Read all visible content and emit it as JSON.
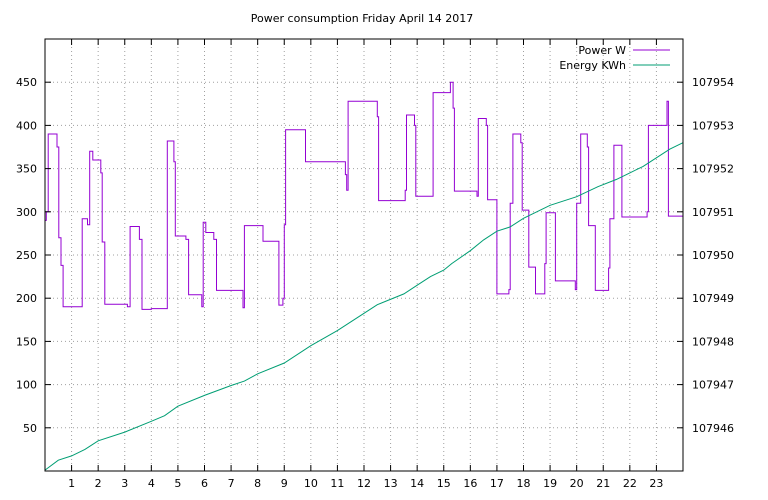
{
  "chart_data": {
    "type": "line",
    "title": "Power consumption Friday April 14 2017",
    "xlabel": "",
    "ylabel": "",
    "y2label": "",
    "x_ticks": [
      1,
      2,
      3,
      4,
      5,
      6,
      7,
      8,
      9,
      10,
      11,
      12,
      13,
      14,
      15,
      16,
      17,
      18,
      19,
      20,
      21,
      22,
      23
    ],
    "xlim": [
      0,
      24
    ],
    "ylim": [
      0,
      500
    ],
    "y_ticks": [
      50,
      100,
      150,
      200,
      250,
      300,
      350,
      400,
      450
    ],
    "y2lim": [
      107945,
      107955
    ],
    "y2_ticks": [
      107946,
      107947,
      107948,
      107949,
      107950,
      107951,
      107952,
      107953,
      107954
    ],
    "grid": true,
    "legend_position": "top-right",
    "series": [
      {
        "name": "Power W",
        "axis": "y1",
        "color": "#9400d3",
        "step": true,
        "points": [
          [
            0.0,
            290
          ],
          [
            0.05,
            300
          ],
          [
            0.12,
            390
          ],
          [
            0.45,
            375
          ],
          [
            0.52,
            270
          ],
          [
            0.6,
            238
          ],
          [
            0.68,
            190
          ],
          [
            1.4,
            292
          ],
          [
            1.6,
            285
          ],
          [
            1.68,
            370
          ],
          [
            1.8,
            360
          ],
          [
            2.1,
            345
          ],
          [
            2.15,
            265
          ],
          [
            2.25,
            193
          ],
          [
            3.1,
            190
          ],
          [
            3.2,
            283
          ],
          [
            3.55,
            268
          ],
          [
            3.65,
            187
          ],
          [
            4.0,
            188
          ],
          [
            4.6,
            382
          ],
          [
            4.85,
            358
          ],
          [
            4.9,
            272
          ],
          [
            5.3,
            268
          ],
          [
            5.4,
            204
          ],
          [
            5.9,
            190
          ],
          [
            5.95,
            288
          ],
          [
            6.05,
            276
          ],
          [
            6.35,
            268
          ],
          [
            6.45,
            209
          ],
          [
            7.45,
            189
          ],
          [
            7.5,
            284
          ],
          [
            8.2,
            266
          ],
          [
            8.8,
            192
          ],
          [
            8.95,
            200
          ],
          [
            9.0,
            285
          ],
          [
            9.05,
            395
          ],
          [
            9.8,
            358
          ],
          [
            11.3,
            343
          ],
          [
            11.35,
            325
          ],
          [
            11.4,
            428
          ],
          [
            12.5,
            410
          ],
          [
            12.55,
            313
          ],
          [
            13.55,
            325
          ],
          [
            13.6,
            412
          ],
          [
            13.9,
            400
          ],
          [
            13.95,
            318
          ],
          [
            14.6,
            438
          ],
          [
            15.25,
            450
          ],
          [
            15.35,
            420
          ],
          [
            15.4,
            324
          ],
          [
            16.25,
            318
          ],
          [
            16.3,
            408
          ],
          [
            16.6,
            400
          ],
          [
            16.65,
            314
          ],
          [
            17.0,
            205
          ],
          [
            17.45,
            210
          ],
          [
            17.5,
            310
          ],
          [
            17.6,
            390
          ],
          [
            17.9,
            380
          ],
          [
            17.95,
            302
          ],
          [
            18.2,
            236
          ],
          [
            18.45,
            205
          ],
          [
            18.8,
            240
          ],
          [
            18.85,
            299
          ],
          [
            19.2,
            220
          ],
          [
            19.95,
            210
          ],
          [
            20.0,
            310
          ],
          [
            20.15,
            390
          ],
          [
            20.4,
            375
          ],
          [
            20.45,
            284
          ],
          [
            20.7,
            209
          ],
          [
            21.2,
            235
          ],
          [
            21.25,
            292
          ],
          [
            21.4,
            377
          ],
          [
            21.7,
            294
          ],
          [
            22.65,
            300
          ],
          [
            22.7,
            400
          ],
          [
            23.4,
            428
          ],
          [
            23.45,
            295
          ],
          [
            24.0,
            295
          ]
        ]
      },
      {
        "name": "Energy KWh",
        "axis": "y2",
        "color": "#009e73",
        "step": false,
        "points": [
          [
            0.0,
            107945.02
          ],
          [
            0.5,
            107945.25
          ],
          [
            1.0,
            107945.35
          ],
          [
            1.5,
            107945.5
          ],
          [
            2.0,
            107945.7
          ],
          [
            3.0,
            107945.9
          ],
          [
            4.0,
            107946.15
          ],
          [
            4.5,
            107946.28
          ],
          [
            5.0,
            107946.5
          ],
          [
            6.0,
            107946.75
          ],
          [
            7.0,
            107946.98
          ],
          [
            7.5,
            107947.08
          ],
          [
            8.0,
            107947.25
          ],
          [
            9.0,
            107947.5
          ],
          [
            10.0,
            107947.9
          ],
          [
            11.0,
            107948.25
          ],
          [
            12.0,
            107948.65
          ],
          [
            12.5,
            107948.85
          ],
          [
            13.5,
            107949.1
          ],
          [
            14.0,
            107949.3
          ],
          [
            14.5,
            107949.5
          ],
          [
            15.0,
            107949.65
          ],
          [
            15.3,
            107949.8
          ],
          [
            16.0,
            107950.1
          ],
          [
            16.5,
            107950.35
          ],
          [
            17.0,
            107950.55
          ],
          [
            17.5,
            107950.65
          ],
          [
            18.0,
            107950.85
          ],
          [
            18.5,
            107951.0
          ],
          [
            19.0,
            107951.15
          ],
          [
            20.0,
            107951.35
          ],
          [
            20.8,
            107951.58
          ],
          [
            21.5,
            107951.75
          ],
          [
            22.0,
            107951.9
          ],
          [
            22.5,
            107952.05
          ],
          [
            23.0,
            107952.25
          ],
          [
            23.5,
            107952.45
          ],
          [
            24.0,
            107952.6
          ]
        ]
      }
    ]
  }
}
